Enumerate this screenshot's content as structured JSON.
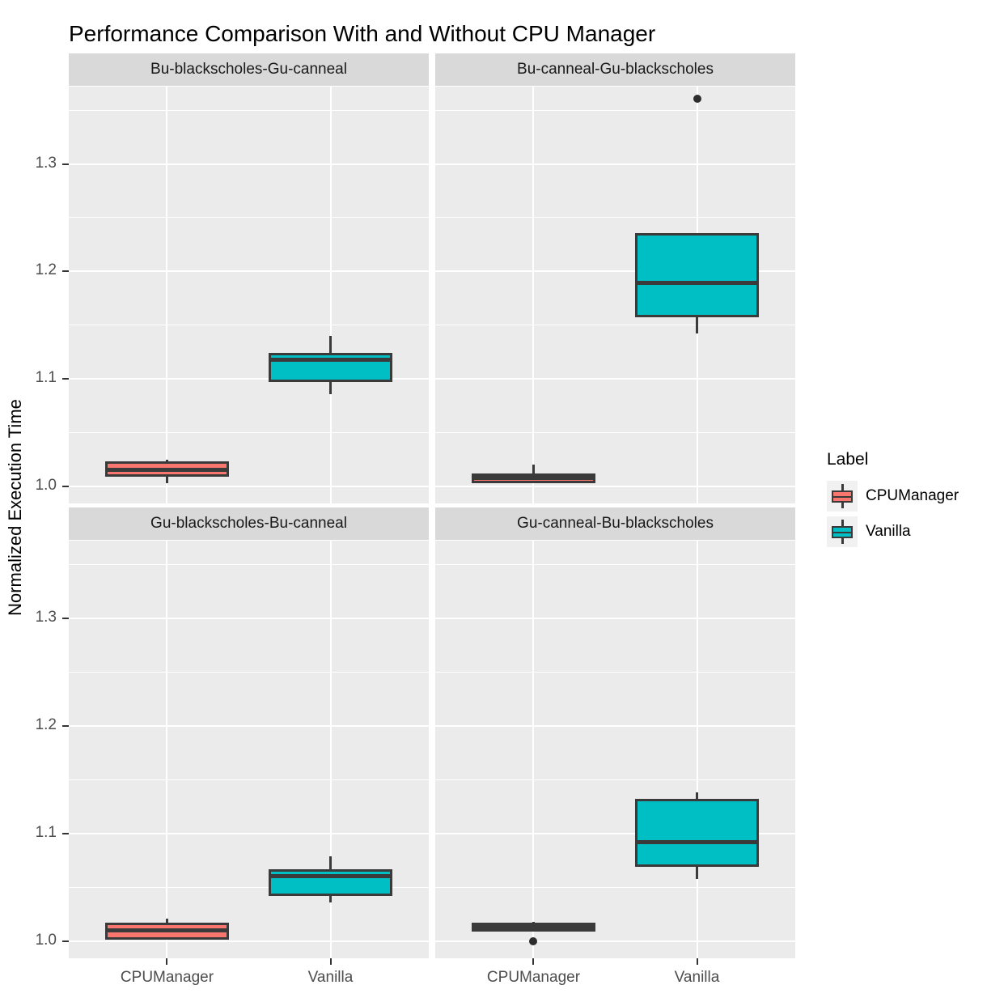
{
  "chart_data": {
    "type": "boxplot",
    "title": "Performance Comparison With and Without CPU Manager",
    "xlabel": "",
    "ylabel": "Normalized Execution Time",
    "categories": [
      "CPUManager",
      "Vanilla"
    ],
    "y_ticks": [
      1.0,
      1.1,
      1.2,
      1.3
    ],
    "y_minor_ticks": [
      1.05,
      1.15,
      1.25,
      1.35
    ],
    "ylim": [
      0.984,
      1.372
    ],
    "grid": "on",
    "legend_position": "right",
    "legend": {
      "title": "Label",
      "entries": [
        {
          "label": "CPUManager",
          "color": "#F8766D"
        },
        {
          "label": "Vanilla",
          "color": "#00BFC4"
        }
      ]
    },
    "colors": {
      "panel_background": "#EBEBEB",
      "strip_background": "#D9D9D9",
      "box_outline": "#3A3A3A",
      "gridline": "#FFFFFF",
      "axis_text": "#4D4D4D"
    },
    "facets": [
      {
        "title": "Bu-blackscholes-Gu-canneal",
        "boxes": [
          {
            "group": "CPUManager",
            "color": "#F8766D",
            "min": 1.003,
            "q1": 1.009,
            "median": 1.015,
            "q3": 1.023,
            "max": 1.025,
            "outliers": []
          },
          {
            "group": "Vanilla",
            "color": "#00BFC4",
            "min": 1.086,
            "q1": 1.097,
            "median": 1.118,
            "q3": 1.124,
            "max": 1.14,
            "outliers": []
          }
        ]
      },
      {
        "title": "Bu-canneal-Gu-blackscholes",
        "boxes": [
          {
            "group": "CPUManager",
            "color": "#F8766D",
            "min": 1.003,
            "q1": 1.003,
            "median": 1.008,
            "q3": 1.012,
            "max": 1.02,
            "outliers": []
          },
          {
            "group": "Vanilla",
            "color": "#00BFC4",
            "min": 1.142,
            "q1": 1.157,
            "median": 1.189,
            "q3": 1.236,
            "max": 1.236,
            "outliers": [
              1.361
            ]
          }
        ]
      },
      {
        "title": "Gu-blackscholes-Bu-canneal",
        "boxes": [
          {
            "group": "CPUManager",
            "color": "#F8766D",
            "min": 1.001,
            "q1": 1.001,
            "median": 1.01,
            "q3": 1.017,
            "max": 1.021,
            "outliers": []
          },
          {
            "group": "Vanilla",
            "color": "#00BFC4",
            "min": 1.036,
            "q1": 1.042,
            "median": 1.06,
            "q3": 1.067,
            "max": 1.079,
            "outliers": []
          }
        ]
      },
      {
        "title": "Gu-canneal-Bu-blackscholes",
        "boxes": [
          {
            "group": "CPUManager",
            "color": "#F8766D",
            "min": 1.009,
            "q1": 1.009,
            "median": 1.013,
            "q3": 1.017,
            "max": 1.018,
            "outliers": [
              1.0
            ]
          },
          {
            "group": "Vanilla",
            "color": "#00BFC4",
            "min": 1.058,
            "q1": 1.069,
            "median": 1.092,
            "q3": 1.132,
            "max": 1.138,
            "outliers": []
          }
        ]
      }
    ]
  }
}
